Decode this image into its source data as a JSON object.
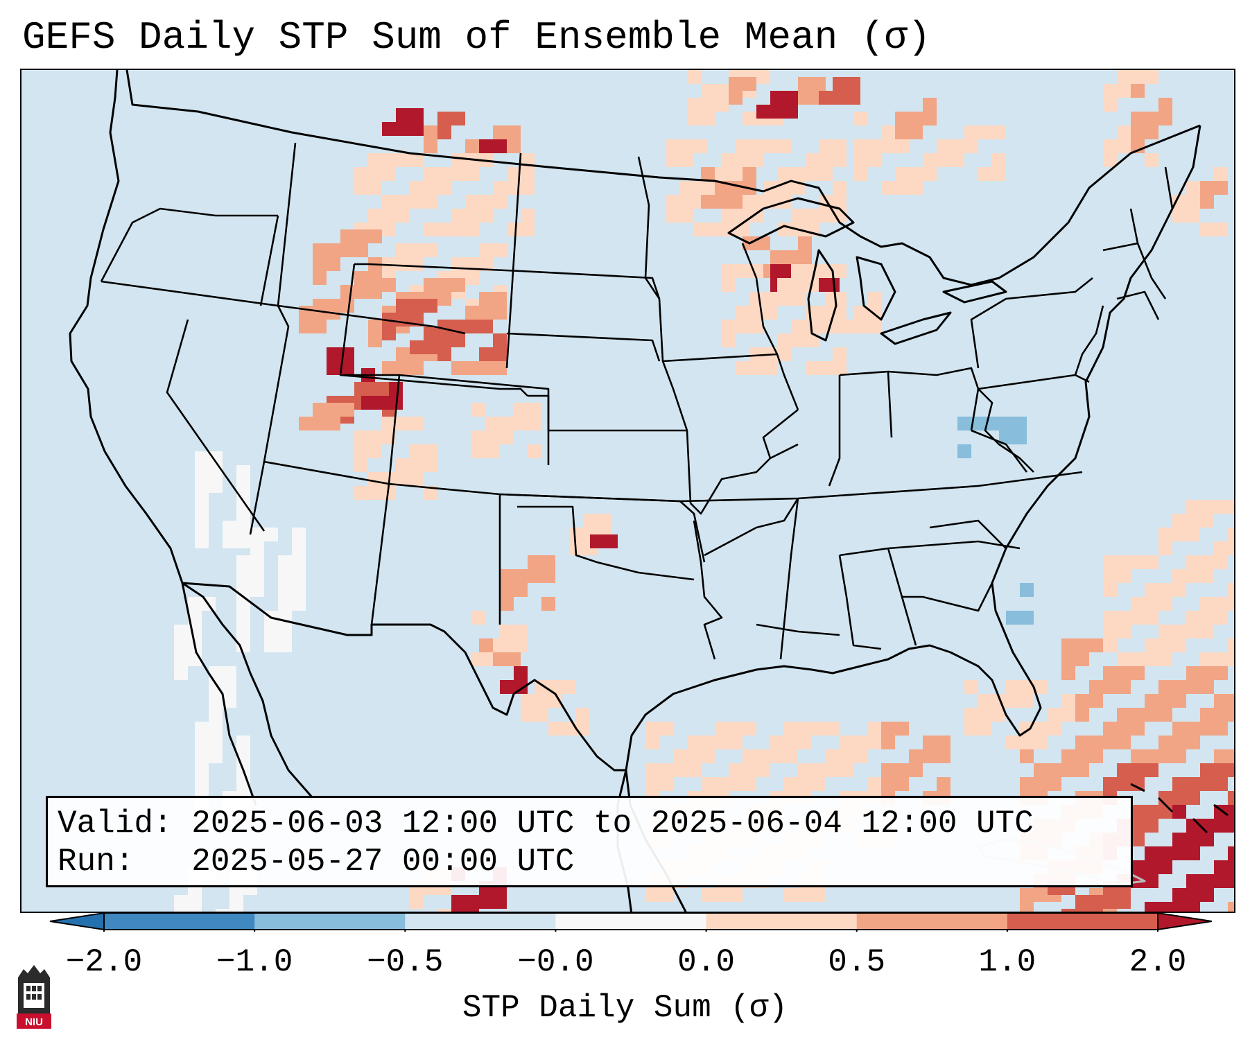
{
  "title": "GEFS Daily STP Sum of Ensemble Mean (σ)",
  "info": {
    "valid_label": "Valid:",
    "valid_value": "2025-06-03 12:00 UTC to 2025-06-04 12:00 UTC",
    "run_label": "Run:",
    "run_value": "2025-05-27 00:00 UTC"
  },
  "colorbar": {
    "label": "STP Daily Sum (σ)",
    "ticks": [
      "−2.0",
      "−1.0",
      "−0.5",
      "−0.0",
      "0.0",
      "0.5",
      "1.0",
      "2.0"
    ],
    "bins": [
      "#3f88c0",
      "#88bddb",
      "#d2e5f0",
      "#f7f7f7",
      "#fdd8c3",
      "#f2a585",
      "#d55e4e"
    ],
    "under_color": "#2571b0",
    "over_color": "#b2182b"
  },
  "colors": {
    "ocean": "#d2e5f0",
    "light": "#fdd8c3",
    "mid": "#f2a585",
    "strong": "#d55e4e",
    "extreme": "#b2182b",
    "negative": "#88bddb",
    "white": "#f7f7f7"
  },
  "logo_text": "NIU"
}
